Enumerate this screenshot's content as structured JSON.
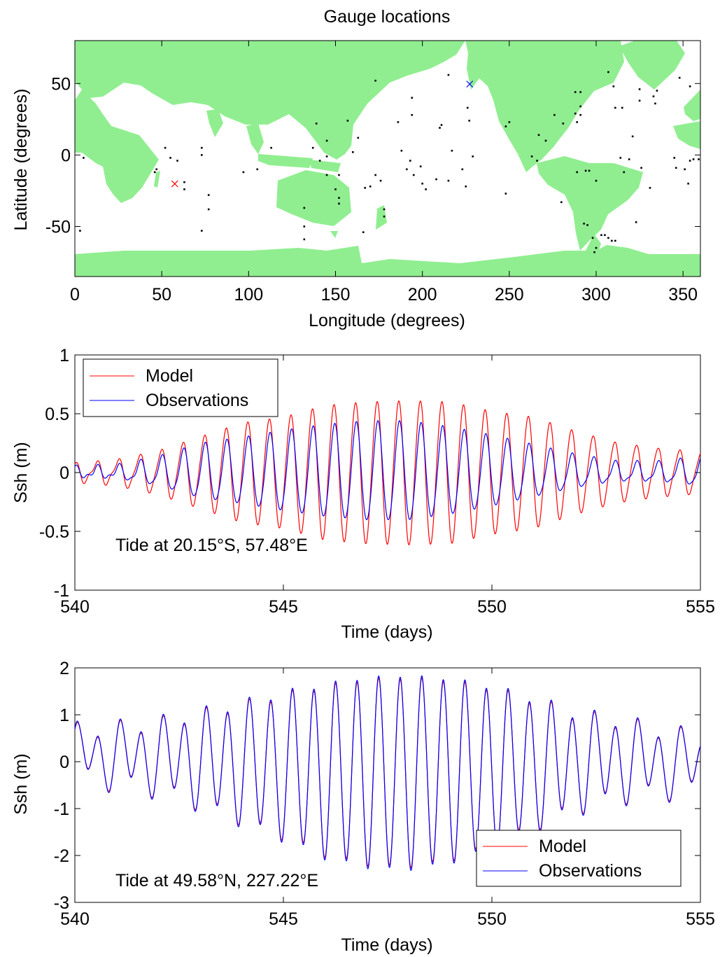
{
  "chart_data": [
    {
      "type": "scatter",
      "title": "Gauge locations",
      "xlabel": "Longitude (degrees)",
      "ylabel": "Latitude (degrees)",
      "xlim": [
        0,
        360
      ],
      "ylim": [
        -85,
        80
      ],
      "xticks": [
        "0",
        "50",
        "100",
        "150",
        "200",
        "250",
        "300",
        "350"
      ],
      "yticks": [
        "50",
        "0",
        "-50"
      ],
      "land_color": "#90ee90",
      "gauges": [
        [
          3,
          -53
        ],
        [
          5,
          -2
        ],
        [
          52,
          5
        ],
        [
          55,
          -2
        ],
        [
          46,
          -12
        ],
        [
          47,
          -10
        ],
        [
          59,
          -4
        ],
        [
          63,
          -19
        ],
        [
          63,
          -24
        ],
        [
          73,
          5
        ],
        [
          73,
          0
        ],
        [
          73,
          -53
        ],
        [
          77,
          -28
        ],
        [
          77,
          -38
        ],
        [
          97,
          -12
        ],
        [
          105,
          -10
        ],
        [
          113,
          5
        ],
        [
          132,
          -37
        ],
        [
          132,
          -50
        ],
        [
          132,
          -59
        ],
        [
          137,
          5
        ],
        [
          139,
          22
        ],
        [
          141,
          -4
        ],
        [
          145,
          10
        ],
        [
          145,
          -1
        ],
        [
          145,
          -14
        ],
        [
          150,
          -24
        ],
        [
          152,
          -14
        ],
        [
          152,
          -30
        ],
        [
          152,
          -34
        ],
        [
          157,
          24
        ],
        [
          160,
          2
        ],
        [
          163,
          12
        ],
        [
          166,
          -54
        ],
        [
          167,
          -23
        ],
        [
          170,
          -22
        ],
        [
          173,
          -14
        ],
        [
          173,
          52
        ],
        [
          176,
          -18
        ],
        [
          178,
          -38
        ],
        [
          178,
          -43
        ],
        [
          186,
          23
        ],
        [
          188,
          3
        ],
        [
          191,
          -10
        ],
        [
          193,
          -4
        ],
        [
          194,
          28
        ],
        [
          194,
          40
        ],
        [
          195,
          -14
        ],
        [
          199,
          -8
        ],
        [
          200,
          -20
        ],
        [
          202,
          -24
        ],
        [
          208,
          -17
        ],
        [
          210,
          19
        ],
        [
          211,
          21
        ],
        [
          215,
          -18
        ],
        [
          215,
          56
        ],
        [
          217,
          3
        ],
        [
          223,
          -10
        ],
        [
          225,
          -22
        ],
        [
          226,
          33
        ],
        [
          227,
          24
        ],
        [
          229,
          -1
        ],
        [
          248,
          -27
        ],
        [
          248,
          20
        ],
        [
          250,
          23
        ],
        [
          263,
          -1
        ],
        [
          266,
          -4
        ],
        [
          267,
          14
        ],
        [
          271,
          10
        ],
        [
          276,
          28
        ],
        [
          280,
          -33
        ],
        [
          281,
          22
        ],
        [
          288,
          44
        ],
        [
          288,
          29
        ],
        [
          289,
          23
        ],
        [
          289,
          -12
        ],
        [
          291,
          34
        ],
        [
          291,
          44
        ],
        [
          291,
          28
        ],
        [
          293,
          -48
        ],
        [
          294,
          -11
        ],
        [
          295,
          -49
        ],
        [
          296,
          -11
        ],
        [
          298,
          -58
        ],
        [
          299,
          -68
        ],
        [
          300,
          -18
        ],
        [
          300,
          -65
        ],
        [
          303,
          -56
        ],
        [
          305,
          -56
        ],
        [
          307,
          58
        ],
        [
          307,
          -58
        ],
        [
          309,
          -60
        ],
        [
          310,
          48
        ],
        [
          311,
          33
        ],
        [
          311,
          -60
        ],
        [
          314,
          -2
        ],
        [
          315,
          33
        ],
        [
          316,
          -12
        ],
        [
          319,
          -3
        ],
        [
          321,
          13
        ],
        [
          323,
          -47
        ],
        [
          325,
          46
        ],
        [
          325,
          38
        ],
        [
          326,
          -9
        ],
        [
          331,
          -23
        ],
        [
          333,
          41
        ],
        [
          334,
          36
        ],
        [
          335,
          45
        ],
        [
          345,
          -2
        ],
        [
          346,
          -9
        ],
        [
          348,
          54
        ],
        [
          351,
          -10
        ],
        [
          353,
          -20
        ],
        [
          354,
          48
        ],
        [
          354,
          -4
        ],
        [
          356,
          -3
        ],
        [
          359,
          -3
        ]
      ],
      "markers": [
        {
          "name": "gauge 1",
          "lon": 57.48,
          "lat": -20.15,
          "color": "#ff0000"
        },
        {
          "name": "gauge 2",
          "lon": 227.22,
          "lat": 49.58,
          "color": "#0000ff"
        }
      ]
    },
    {
      "type": "line",
      "xlabel": "Time (days)",
      "ylabel": "Ssh (m)",
      "xlim": [
        540,
        555
      ],
      "ylim": [
        -1,
        1
      ],
      "xticks": [
        "540",
        "545",
        "550",
        "555"
      ],
      "yticks": [
        "1",
        "0.5",
        "0",
        "-0.5",
        "-1"
      ],
      "annotation": "Tide at 20.15°S, 57.48°E",
      "legend_placement": "top-left",
      "series": [
        {
          "name": "Model",
          "color": "#ff0000"
        },
        {
          "name": "Observations",
          "color": "#0000ff"
        }
      ],
      "envelope": {
        "days": [
          540.0,
          541.0,
          542.0,
          543.0,
          544.0,
          545.0,
          546.0,
          547.0,
          548.0,
          549.0,
          550.0,
          551.0,
          552.0,
          553.0,
          554.0,
          555.0
        ],
        "model_amplitude": [
          0.07,
          0.1,
          0.18,
          0.3,
          0.42,
          0.47,
          0.57,
          0.6,
          0.61,
          0.6,
          0.52,
          0.47,
          0.35,
          0.25,
          0.2,
          0.17
        ],
        "observations_amplitude": [
          0.04,
          0.05,
          0.12,
          0.23,
          0.28,
          0.34,
          0.39,
          0.42,
          0.42,
          0.37,
          0.3,
          0.22,
          0.14,
          0.08,
          0.08,
          0.12
        ]
      }
    },
    {
      "type": "line",
      "xlabel": "Time (days)",
      "ylabel": "Ssh (m)",
      "xlim": [
        540,
        555
      ],
      "ylim": [
        -3,
        2
      ],
      "xticks": [
        "540",
        "545",
        "550",
        "555"
      ],
      "yticks": [
        "2",
        "1",
        "0",
        "-1",
        "-2",
        "-3"
      ],
      "annotation": "Tide at 49.58°N, 227.22°E",
      "legend_placement": "bottom-right",
      "series": [
        {
          "name": "Model",
          "color": "#ff0000"
        },
        {
          "name": "Observations",
          "color": "#0000ff"
        }
      ],
      "envelope": {
        "days": [
          540.0,
          541.0,
          542.0,
          543.0,
          544.0,
          545.0,
          546.0,
          547.0,
          548.0,
          549.0,
          550.0,
          551.0,
          552.0,
          553.0,
          554.0,
          555.0
        ],
        "high_water": [
          0.65,
          0.7,
          0.8,
          1.0,
          1.2,
          1.42,
          1.6,
          1.75,
          1.78,
          1.72,
          1.55,
          1.3,
          1.0,
          0.85,
          0.65,
          0.5
        ],
        "low_water": [
          -0.3,
          -0.45,
          -0.6,
          -0.9,
          -1.25,
          -1.6,
          -2.0,
          -2.2,
          -2.25,
          -2.1,
          -1.8,
          -1.4,
          -1.0,
          -0.75,
          -0.65,
          -0.6
        ]
      }
    }
  ]
}
